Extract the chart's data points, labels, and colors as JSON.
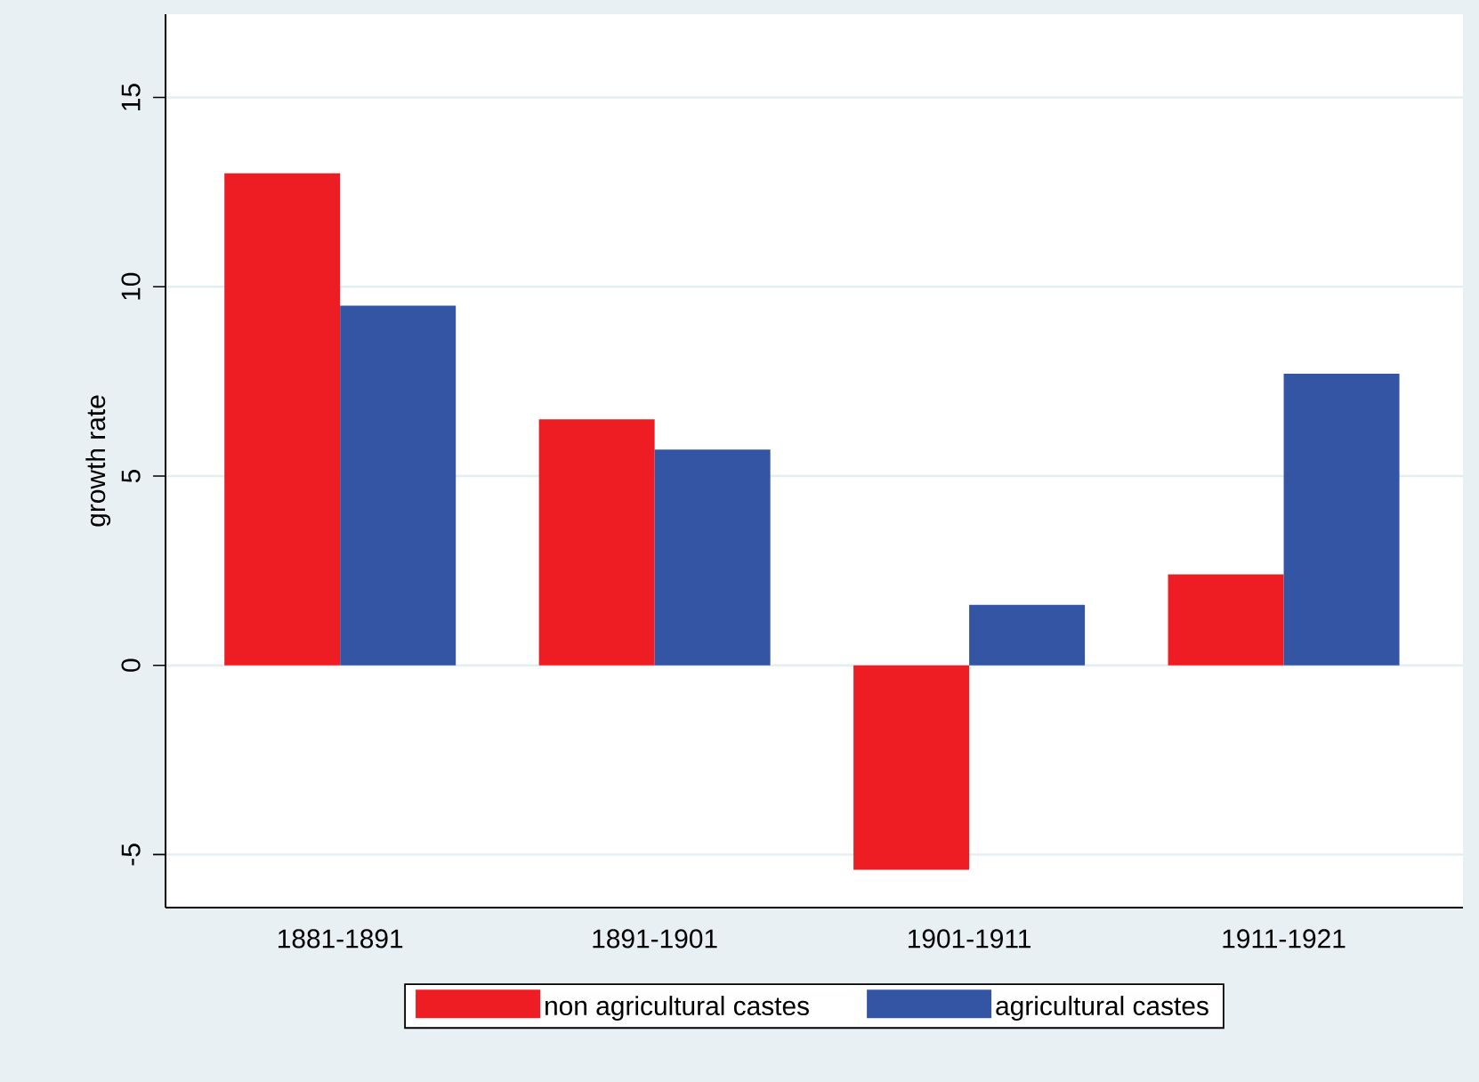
{
  "chart_data": {
    "type": "bar",
    "ylabel": "growth rate",
    "categories": [
      "1881-1891",
      "1891-1901",
      "1901-1911",
      "1911-1921"
    ],
    "series": [
      {
        "name": "non agricultural castes",
        "color": "#ee1d23",
        "values": [
          13.0,
          6.5,
          -5.4,
          2.4
        ]
      },
      {
        "name": "agricultural castes",
        "color": "#3454a4",
        "values": [
          9.5,
          5.7,
          1.6,
          7.7
        ]
      }
    ],
    "ylim": [
      -6.4,
      17.2
    ],
    "yticks": [
      -5,
      0,
      5,
      10,
      15
    ],
    "grid": "y",
    "legend": "bottom"
  }
}
